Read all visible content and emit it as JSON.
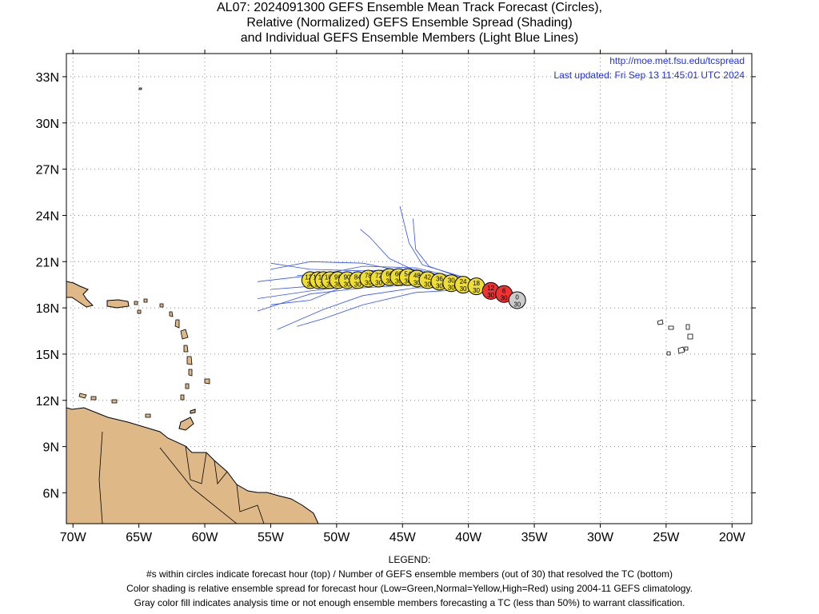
{
  "titles": {
    "line1": "AL07: 2024091300 GEFS Ensemble Mean Track Forecast (Circles),",
    "line2": "Relative (Normalized) GEFS Ensemble Spread (Shading)",
    "line3": "and Individual GEFS Ensemble Members (Light Blue Lines)"
  },
  "credits": {
    "url": "http://moe.met.fsu.edu/tcspread",
    "updated": "Last updated: Fri Sep 13 11:45:01 UTC 2024"
  },
  "axes": {
    "lon_range": [
      -70.5,
      -18.5
    ],
    "lat_range": [
      4.0,
      34.5
    ],
    "lon_ticks": [
      {
        "value": -70,
        "label": "70W"
      },
      {
        "value": -65,
        "label": "65W"
      },
      {
        "value": -60,
        "label": "60W"
      },
      {
        "value": -55,
        "label": "55W"
      },
      {
        "value": -50,
        "label": "50W"
      },
      {
        "value": -45,
        "label": "45W"
      },
      {
        "value": -40,
        "label": "40W"
      },
      {
        "value": -35,
        "label": "35W"
      },
      {
        "value": -30,
        "label": "30W"
      },
      {
        "value": -25,
        "label": "25W"
      },
      {
        "value": -20,
        "label": "20W"
      }
    ],
    "lat_ticks": [
      {
        "value": 6,
        "label": "6N"
      },
      {
        "value": 9,
        "label": "9N"
      },
      {
        "value": 12,
        "label": "12N"
      },
      {
        "value": 15,
        "label": "15N"
      },
      {
        "value": 18,
        "label": "18N"
      },
      {
        "value": 21,
        "label": "21N"
      },
      {
        "value": 24,
        "label": "24N"
      },
      {
        "value": 27,
        "label": "27N"
      },
      {
        "value": 30,
        "label": "30N"
      },
      {
        "value": 33,
        "label": "33N"
      }
    ]
  },
  "colors": {
    "land": "#deb887",
    "member_lines": "#3355ee",
    "grid": "#888888",
    "spread_high": "#ee3333",
    "spread_normal": "#eedd33",
    "analysis_gray": "#cccccc"
  },
  "track": [
    {
      "hour": "0",
      "members": "30",
      "lon": -36.3,
      "lat": 18.5,
      "category": "analysis"
    },
    {
      "hour": "6",
      "members": "30",
      "lon": -37.3,
      "lat": 18.9,
      "category": "high"
    },
    {
      "hour": "12",
      "members": "30",
      "lon": -38.3,
      "lat": 19.1,
      "category": "high"
    },
    {
      "hour": "18",
      "members": "30",
      "lon": -39.4,
      "lat": 19.4,
      "category": "normal"
    },
    {
      "hour": "24",
      "members": "30",
      "lon": -40.4,
      "lat": 19.5,
      "category": "normal"
    },
    {
      "hour": "30",
      "members": "30",
      "lon": -41.3,
      "lat": 19.6,
      "category": "normal"
    },
    {
      "hour": "36",
      "members": "30",
      "lon": -42.2,
      "lat": 19.7,
      "category": "normal"
    },
    {
      "hour": "42",
      "members": "30",
      "lon": -43.1,
      "lat": 19.8,
      "category": "normal"
    },
    {
      "hour": "48",
      "members": "30",
      "lon": -43.9,
      "lat": 19.9,
      "category": "normal"
    },
    {
      "hour": "54",
      "members": "30",
      "lon": -44.6,
      "lat": 20.0,
      "category": "normal"
    },
    {
      "hour": "60",
      "members": "30",
      "lon": -45.3,
      "lat": 20.0,
      "category": "normal"
    },
    {
      "hour": "66",
      "members": "30",
      "lon": -46.0,
      "lat": 20.0,
      "category": "normal"
    },
    {
      "hour": "72",
      "members": "30",
      "lon": -46.8,
      "lat": 19.9,
      "category": "normal"
    },
    {
      "hour": "78",
      "members": "30",
      "lon": -47.6,
      "lat": 19.9,
      "category": "normal"
    },
    {
      "hour": "84",
      "members": "30",
      "lon": -48.4,
      "lat": 19.8,
      "category": "normal"
    },
    {
      "hour": "90",
      "members": "30",
      "lon": -49.2,
      "lat": 19.8,
      "category": "normal"
    },
    {
      "hour": "96",
      "members": "30",
      "lon": -49.9,
      "lat": 19.8,
      "category": "normal"
    },
    {
      "hour": "102",
      "members": "30",
      "lon": -50.5,
      "lat": 19.8,
      "category": "normal"
    },
    {
      "hour": "108",
      "members": "30",
      "lon": -51.0,
      "lat": 19.8,
      "category": "normal"
    },
    {
      "hour": "114",
      "members": "30",
      "lon": -51.4,
      "lat": 19.8,
      "category": "normal"
    },
    {
      "hour": "120",
      "members": "30",
      "lon": -52.0,
      "lat": 19.8,
      "category": "normal"
    }
  ],
  "members_tracks": [
    [
      [
        -36.3,
        18.5
      ],
      [
        -40,
        19.7
      ],
      [
        -44,
        20.4
      ],
      [
        -46,
        21.2
      ],
      [
        -47.5,
        22.6
      ],
      [
        -48.2,
        23.1
      ]
    ],
    [
      [
        -36.3,
        18.5
      ],
      [
        -40,
        19.9
      ],
      [
        -43.5,
        20.8
      ],
      [
        -44.5,
        22.2
      ],
      [
        -45.2,
        24.6
      ]
    ],
    [
      [
        -36.3,
        18.5
      ],
      [
        -40,
        19.8
      ],
      [
        -43,
        20.7
      ],
      [
        -44,
        21.8
      ],
      [
        -44.2,
        23.8
      ]
    ],
    [
      [
        -36.3,
        18.5
      ],
      [
        -40,
        19.6
      ],
      [
        -44,
        20.2
      ],
      [
        -48,
        20.9
      ],
      [
        -52,
        21.0
      ],
      [
        -55,
        20.5
      ]
    ],
    [
      [
        -36.3,
        18.5
      ],
      [
        -40,
        19.5
      ],
      [
        -44,
        19.9
      ],
      [
        -48,
        20.2
      ],
      [
        -52,
        20.1
      ],
      [
        -56,
        19.7
      ]
    ],
    [
      [
        -36.3,
        18.5
      ],
      [
        -40,
        19.4
      ],
      [
        -44,
        19.6
      ],
      [
        -48,
        19.5
      ],
      [
        -52,
        19.1
      ],
      [
        -56,
        18.6
      ]
    ],
    [
      [
        -36.3,
        18.5
      ],
      [
        -40,
        19.3
      ],
      [
        -44,
        19.3
      ],
      [
        -48,
        18.8
      ],
      [
        -51,
        17.9
      ],
      [
        -54.5,
        16.6
      ]
    ],
    [
      [
        -36.3,
        18.5
      ],
      [
        -40,
        19.2
      ],
      [
        -44,
        19.0
      ],
      [
        -48,
        18.2
      ],
      [
        -51,
        17.3
      ],
      [
        -53,
        16.8
      ]
    ],
    [
      [
        -36.3,
        18.5
      ],
      [
        -40,
        19.5
      ],
      [
        -44,
        19.8
      ],
      [
        -48,
        19.6
      ],
      [
        -52,
        19.4
      ],
      [
        -55,
        19.2
      ]
    ],
    [
      [
        -36.3,
        18.5
      ],
      [
        -40,
        19.7
      ],
      [
        -44,
        20.5
      ],
      [
        -48,
        20.4
      ],
      [
        -52,
        20.5
      ],
      [
        -55,
        20.9
      ]
    ],
    [
      [
        -36.3,
        18.5
      ],
      [
        -40,
        19.6
      ],
      [
        -44,
        20.0
      ],
      [
        -48,
        19.9
      ],
      [
        -52,
        18.5
      ],
      [
        -55,
        18.2
      ]
    ],
    [
      [
        -36.3,
        18.5
      ],
      [
        -40,
        19.4
      ],
      [
        -44,
        19.5
      ],
      [
        -48,
        19.3
      ],
      [
        -52,
        18.9
      ],
      [
        -56,
        17.8
      ]
    ],
    [
      [
        -36.3,
        18.5
      ],
      [
        -40,
        19.8
      ],
      [
        -44,
        20.6
      ],
      [
        -48,
        20.7
      ],
      [
        -51,
        20.2
      ],
      [
        -53,
        20.1
      ]
    ]
  ],
  "legend": {
    "heading": "LEGEND:",
    "line1": "#s within circles indicate forecast hour (top) / Number of GEFS ensemble members (out of 30) that resolved the TC (bottom)",
    "line2": "Color shading is relative ensemble spread for forecast hour (Low=Green,Normal=Yellow,High=Red) using 2004-11 GEFS climatology.",
    "line3": "Gray color fill indicates analysis time or not enough ensemble members forecasting a TC (less than 50%) to warrant classification."
  }
}
